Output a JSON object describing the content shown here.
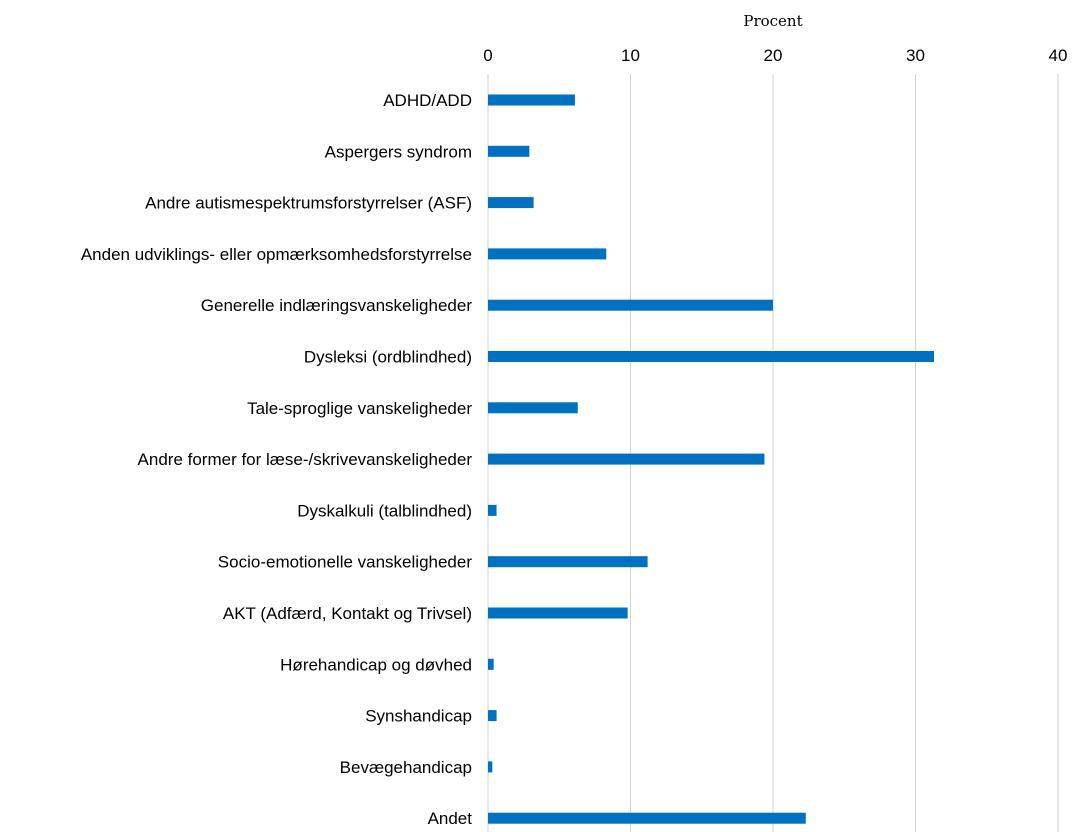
{
  "chart_data": {
    "type": "bar",
    "orientation": "horizontal",
    "title": "",
    "xlabel": "Procent",
    "xlabel_position": "top",
    "xlim": [
      0,
      40
    ],
    "xticks": [
      0,
      10,
      20,
      30,
      40
    ],
    "grid": "vertical",
    "legend": "none",
    "bar_color": "#0070C0",
    "grid_color": "#D0D0D0",
    "categories": [
      "ADHD/ADD",
      "Aspergers syndrom",
      "Andre autismespektrumsforstyrrelser (ASF)",
      "Anden udviklings- eller opmærksomhedsforstyrrelse",
      "Generelle indlæringsvanskeligheder",
      "Dysleksi (ordblindhed)",
      "Tale-sproglige vanskeligheder",
      "Andre former for læse-/skrivevanskeligheder",
      "Dyskalkuli (talblindhed)",
      "Socio-emotionelle vanskeligheder",
      "AKT (Adfærd, Kontakt og Trivsel)",
      "Hørehandicap og døvhed",
      "Synshandicap",
      "Bevægehandicap",
      "Andet"
    ],
    "values": [
      6.1,
      2.9,
      3.2,
      8.3,
      20.0,
      31.3,
      6.3,
      19.4,
      0.6,
      11.2,
      9.8,
      0.4,
      0.6,
      0.3,
      22.3
    ]
  }
}
